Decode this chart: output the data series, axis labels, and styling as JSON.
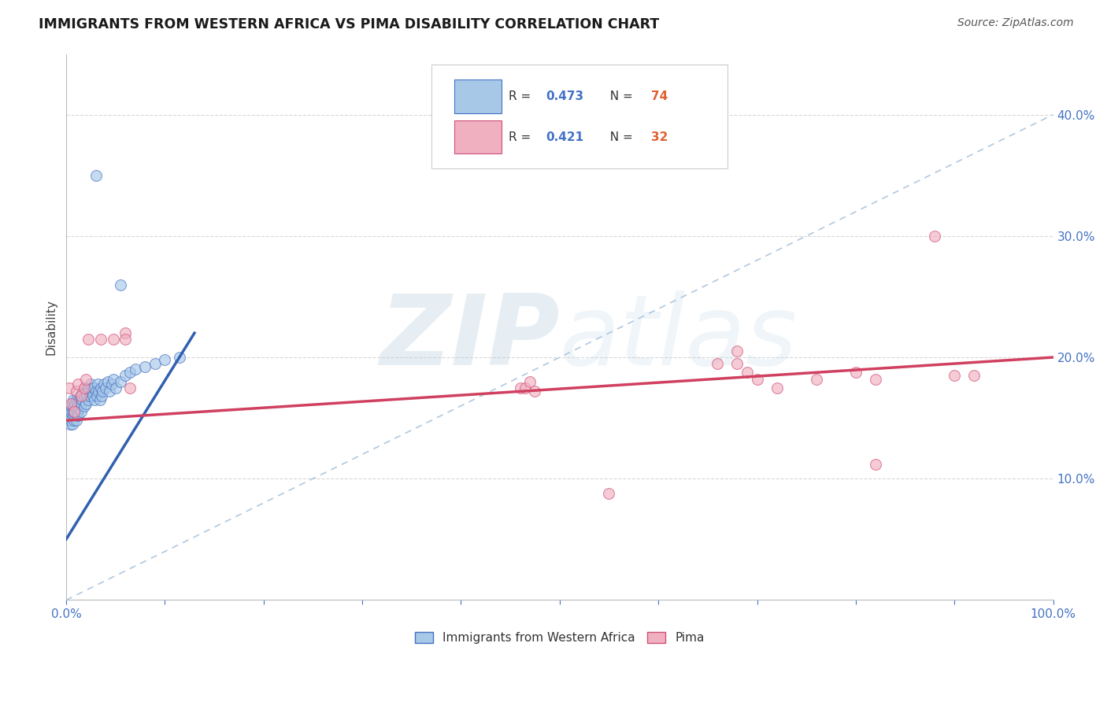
{
  "title": "IMMIGRANTS FROM WESTERN AFRICA VS PIMA DISABILITY CORRELATION CHART",
  "source": "Source: ZipAtlas.com",
  "ylabel": "Disability",
  "watermark": "ZIPatlas",
  "blue_r": "0.473",
  "blue_n": "74",
  "pink_r": "0.421",
  "pink_n": "32",
  "xlim": [
    0.0,
    1.0
  ],
  "ylim": [
    0.0,
    0.45
  ],
  "blue_color": "#a8c8e8",
  "blue_edge_color": "#4472c4",
  "pink_color": "#f0b0c0",
  "pink_edge_color": "#d0507a",
  "blue_line_color": "#3060b0",
  "pink_line_color": "#d04060",
  "dashed_line_color": "#b0c8e0",
  "grid_color": "#d8d8d8",
  "r_text_color": "#4472c4",
  "n_text_color": "#e06030",
  "axis_label_color": "#4472c4",
  "blue_scatter": [
    [
      0.002,
      0.155
    ],
    [
      0.003,
      0.148
    ],
    [
      0.003,
      0.158
    ],
    [
      0.004,
      0.145
    ],
    [
      0.004,
      0.152
    ],
    [
      0.005,
      0.16
    ],
    [
      0.005,
      0.155
    ],
    [
      0.005,
      0.148
    ],
    [
      0.006,
      0.162
    ],
    [
      0.006,
      0.155
    ],
    [
      0.006,
      0.145
    ],
    [
      0.007,
      0.158
    ],
    [
      0.007,
      0.152
    ],
    [
      0.007,
      0.165
    ],
    [
      0.008,
      0.155
    ],
    [
      0.008,
      0.148
    ],
    [
      0.008,
      0.16
    ],
    [
      0.009,
      0.155
    ],
    [
      0.009,
      0.162
    ],
    [
      0.01,
      0.158
    ],
    [
      0.01,
      0.148
    ],
    [
      0.01,
      0.165
    ],
    [
      0.011,
      0.162
    ],
    [
      0.011,
      0.155
    ],
    [
      0.012,
      0.16
    ],
    [
      0.012,
      0.152
    ],
    [
      0.013,
      0.165
    ],
    [
      0.013,
      0.158
    ],
    [
      0.014,
      0.168
    ],
    [
      0.015,
      0.162
    ],
    [
      0.015,
      0.155
    ],
    [
      0.016,
      0.17
    ],
    [
      0.016,
      0.165
    ],
    [
      0.017,
      0.172
    ],
    [
      0.018,
      0.168
    ],
    [
      0.018,
      0.16
    ],
    [
      0.019,
      0.175
    ],
    [
      0.02,
      0.17
    ],
    [
      0.02,
      0.162
    ],
    [
      0.021,
      0.168
    ],
    [
      0.022,
      0.175
    ],
    [
      0.022,
      0.165
    ],
    [
      0.023,
      0.172
    ],
    [
      0.024,
      0.168
    ],
    [
      0.025,
      0.178
    ],
    [
      0.026,
      0.172
    ],
    [
      0.027,
      0.168
    ],
    [
      0.028,
      0.175
    ],
    [
      0.029,
      0.165
    ],
    [
      0.03,
      0.172
    ],
    [
      0.031,
      0.168
    ],
    [
      0.032,
      0.178
    ],
    [
      0.033,
      0.172
    ],
    [
      0.034,
      0.165
    ],
    [
      0.035,
      0.175
    ],
    [
      0.036,
      0.168
    ],
    [
      0.037,
      0.172
    ],
    [
      0.038,
      0.178
    ],
    [
      0.04,
      0.175
    ],
    [
      0.042,
      0.18
    ],
    [
      0.044,
      0.172
    ],
    [
      0.046,
      0.178
    ],
    [
      0.048,
      0.182
    ],
    [
      0.05,
      0.175
    ],
    [
      0.055,
      0.18
    ],
    [
      0.06,
      0.185
    ],
    [
      0.065,
      0.188
    ],
    [
      0.07,
      0.19
    ],
    [
      0.08,
      0.192
    ],
    [
      0.09,
      0.195
    ],
    [
      0.1,
      0.198
    ],
    [
      0.115,
      0.2
    ],
    [
      0.03,
      0.35
    ],
    [
      0.055,
      0.26
    ]
  ],
  "pink_scatter": [
    [
      0.003,
      0.175
    ],
    [
      0.005,
      0.162
    ],
    [
      0.008,
      0.155
    ],
    [
      0.01,
      0.172
    ],
    [
      0.012,
      0.178
    ],
    [
      0.015,
      0.168
    ],
    [
      0.018,
      0.175
    ],
    [
      0.02,
      0.182
    ],
    [
      0.022,
      0.215
    ],
    [
      0.035,
      0.215
    ],
    [
      0.048,
      0.215
    ],
    [
      0.06,
      0.22
    ],
    [
      0.06,
      0.215
    ],
    [
      0.065,
      0.175
    ],
    [
      0.46,
      0.175
    ],
    [
      0.465,
      0.175
    ],
    [
      0.47,
      0.18
    ],
    [
      0.475,
      0.172
    ],
    [
      0.55,
      0.088
    ],
    [
      0.66,
      0.195
    ],
    [
      0.68,
      0.195
    ],
    [
      0.68,
      0.205
    ],
    [
      0.69,
      0.188
    ],
    [
      0.7,
      0.182
    ],
    [
      0.72,
      0.175
    ],
    [
      0.76,
      0.182
    ],
    [
      0.8,
      0.188
    ],
    [
      0.82,
      0.182
    ],
    [
      0.88,
      0.3
    ],
    [
      0.9,
      0.185
    ],
    [
      0.92,
      0.185
    ],
    [
      0.82,
      0.112
    ]
  ],
  "blue_line": {
    "x0": 0.0,
    "y0": 0.05,
    "x1": 0.13,
    "y1": 0.22
  },
  "pink_line": {
    "x0": 0.0,
    "y0": 0.148,
    "x1": 1.0,
    "y1": 0.2
  },
  "diag_line": {
    "x0": 0.0,
    "y0": 0.0,
    "x1": 1.0,
    "y1": 0.4
  }
}
